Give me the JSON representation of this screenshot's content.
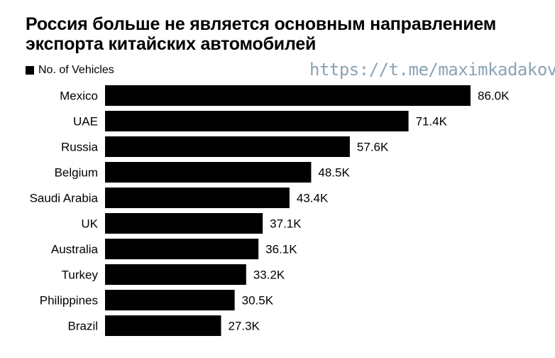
{
  "title": "Россия больше не является основным направлением экспорта китайских автомобилей",
  "legend": {
    "label": "No. of Vehicles"
  },
  "watermark": "https://t.me/maximkadakov",
  "colors": {
    "bar": "#000000",
    "watermark": "#8aa3b4"
  },
  "chart_data": {
    "type": "bar",
    "orientation": "horizontal",
    "title": "Россия больше не является основным направлением экспорта китайских автомобилей",
    "xlabel": "",
    "ylabel": "",
    "grid": false,
    "legend_position": "top-left",
    "categories": [
      "Mexico",
      "UAE",
      "Russia",
      "Belgium",
      "Saudi Arabia",
      "UK",
      "Australia",
      "Turkey",
      "Philippines",
      "Brazil"
    ],
    "series": [
      {
        "name": "No. of Vehicles",
        "values": [
          86000,
          71400,
          57600,
          48500,
          43400,
          37100,
          36100,
          33200,
          30500,
          27300
        ],
        "labels": [
          "86.0K",
          "71.4K",
          "57.6K",
          "48.5K",
          "43.4K",
          "37.1K",
          "36.1K",
          "33.2K",
          "30.5K",
          "27.3K"
        ]
      }
    ]
  }
}
